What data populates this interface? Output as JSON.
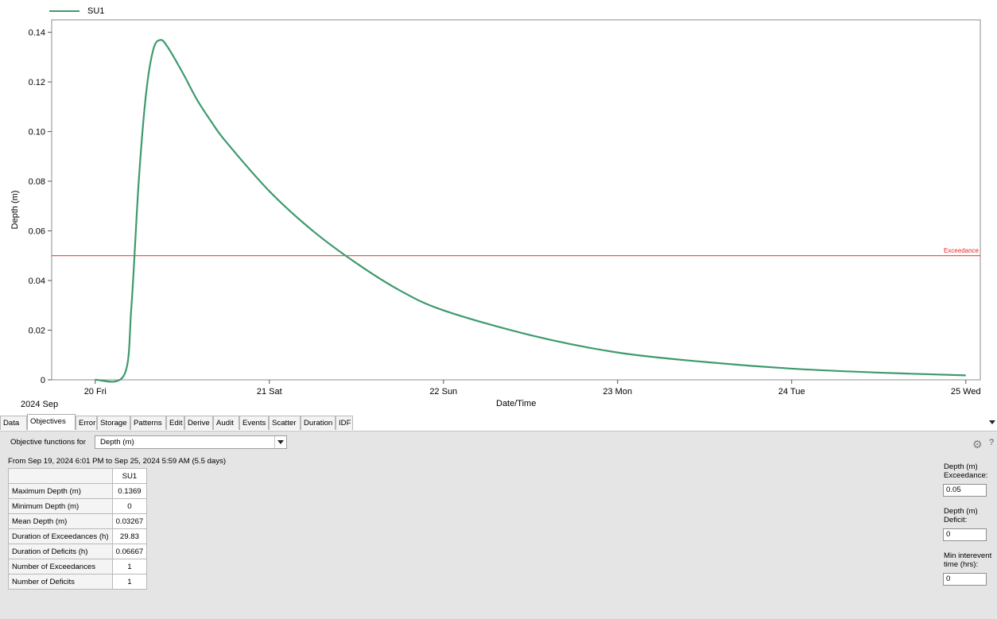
{
  "legend": {
    "series_name": "SU1",
    "color": "#3e9a6d"
  },
  "chart_data": {
    "type": "line",
    "title": "",
    "xlabel": "Date/Time",
    "ylabel": "Depth (m)",
    "x_year_label": "2024 Sep",
    "xticks": [
      "20 Fri",
      "21 Sat",
      "22 Sun",
      "23 Mon",
      "24 Tue",
      "25 Wed"
    ],
    "yticks": [
      "0",
      "0.02",
      "0.04",
      "0.06",
      "0.08",
      "0.10",
      "0.12",
      "0.14"
    ],
    "ylim": [
      0,
      0.145
    ],
    "xlim_days": [
      "2024-09-19 18:00",
      "2024-09-25 02:00"
    ],
    "series": [
      {
        "name": "SU1",
        "color": "#3e9a6d",
        "x": [
          "2024-09-20 00:00",
          "2024-09-20 04:00",
          "2024-09-20 05:00",
          "2024-09-20 06:00",
          "2024-09-20 07:00",
          "2024-09-20 08:00",
          "2024-09-20 09:00",
          "2024-09-20 10:00",
          "2024-09-20 12:00",
          "2024-09-20 14:00",
          "2024-09-20 16:00",
          "2024-09-20 18:00",
          "2024-09-21 00:00",
          "2024-09-21 06:00",
          "2024-09-21 12:00",
          "2024-09-21 18:00",
          "2024-09-22 00:00",
          "2024-09-22 12:00",
          "2024-09-23 00:00",
          "2024-09-23 12:00",
          "2024-09-24 00:00",
          "2024-09-24 12:00",
          "2024-09-25 00:00"
        ],
        "values": [
          0,
          0.002,
          0.03,
          0.08,
          0.115,
          0.133,
          0.1369,
          0.134,
          0.124,
          0.113,
          0.104,
          0.096,
          0.076,
          0.06,
          0.047,
          0.036,
          0.028,
          0.018,
          0.011,
          0.0072,
          0.0045,
          0.0029,
          0.0018
        ]
      }
    ],
    "reference_line": {
      "label": "Exceedance",
      "value": 0.05,
      "color": "#e02a2a"
    },
    "grid": false
  },
  "tabs": [
    {
      "label": "Data",
      "active": false
    },
    {
      "label": "Objectives",
      "active": true
    },
    {
      "label": "Error",
      "active": false
    },
    {
      "label": "Storage",
      "active": false
    },
    {
      "label": "Patterns",
      "active": false
    },
    {
      "label": "Edit",
      "active": false
    },
    {
      "label": "Derive",
      "active": false
    },
    {
      "label": "Audit",
      "active": false
    },
    {
      "label": "Events",
      "active": false
    },
    {
      "label": "Scatter",
      "active": false
    },
    {
      "label": "Duration",
      "active": false
    },
    {
      "label": "IDF",
      "active": false
    }
  ],
  "objectives": {
    "label": "Objective functions for",
    "selected": "Depth (m)",
    "range_text": "From Sep 19, 2024 6:01 PM to Sep 25, 2024 5:59 AM (5.5 days)",
    "column_header": "SU1",
    "rows": [
      {
        "label": "Maximum Depth (m)",
        "value": "0.1369"
      },
      {
        "label": "Minimum Depth (m)",
        "value": "0"
      },
      {
        "label": "Mean Depth (m)",
        "value": "0.03267"
      },
      {
        "label": "Duration of Exceedances (h)",
        "value": "29.83"
      },
      {
        "label": "Duration of Deficits (h)",
        "value": "0.06667"
      },
      {
        "label": "Number of Exceedances",
        "value": "1"
      },
      {
        "label": "Number of Deficits",
        "value": "1"
      }
    ]
  },
  "settings": {
    "gear_icon": "gear-icon",
    "help_text": "?",
    "exceedance_label": "Depth (m) Exceedance:",
    "exceedance_value": "0.05",
    "deficit_label": "Depth (m) Deficit:",
    "deficit_value": "0",
    "interevent_label": "Min interevent time (hrs):",
    "interevent_value": "0"
  }
}
